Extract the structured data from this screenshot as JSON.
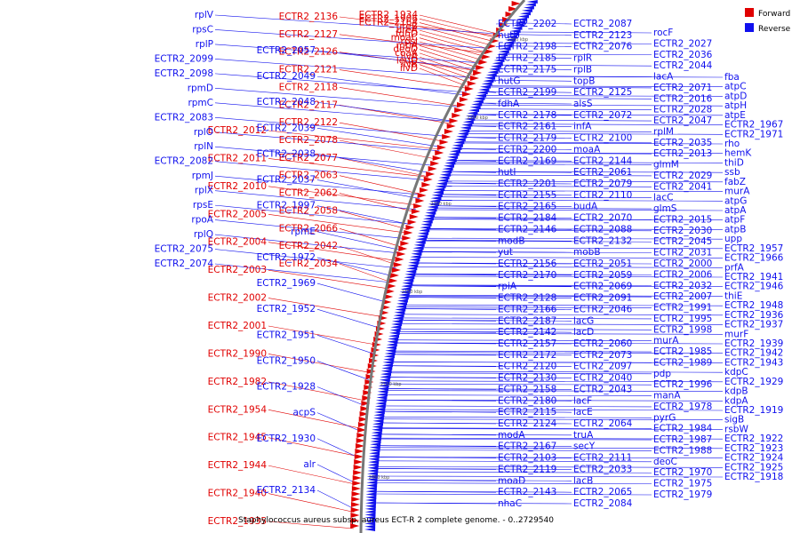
{
  "caption": "Staphylococcus aureus subsp. aureus ECT-R 2 complete genome. - 0..2729540",
  "legend": {
    "forward": {
      "label": "Forward",
      "color": "#e00000"
    },
    "reverse": {
      "label": "Reverse",
      "color": "#1010ee"
    }
  },
  "ticks": [
    "2300 kbp",
    "2250 kbp",
    "2200 kbp",
    "2150 kbp",
    "2100 kbp",
    "2050 kbp"
  ],
  "labels_forward": [
    "ECTR2_2136",
    "ECTR2_2127",
    "ECTR2_2126",
    "ECTR2_2121",
    "ECTR2_2118",
    "ECTR2_2117",
    "ECTR2_2122",
    "ECTR2_2078",
    "ECTR2_2077",
    "ECTR2_2063",
    "ECTR2_2062",
    "ECTR2_2058",
    "ECTR2_2066",
    "ECTR2_2042",
    "ECTR2_2034",
    "ECTR2_2012",
    "ECTR2_2011",
    "ECTR2_2010",
    "ECTR2_2005",
    "ECTR2_2004",
    "ECTR2_2003",
    "ECTR2_2002",
    "ECTR2_2001",
    "ECTR2_1990",
    "ECTR2_1982",
    "ECTR2_1954",
    "ECTR2_1945",
    "ECTR2_1944",
    "ECTR2_1940",
    "ECTR2_1935",
    "ECTR2_1934",
    "ECTR2_1906",
    "ECTR2_2164",
    "ureB",
    "ureA",
    "fdhD",
    "moaC",
    "rpsJ",
    "mtlA",
    "deoD",
    "coaA",
    "ilvA",
    "leuD",
    "ilvB",
    "ilvD"
  ],
  "labels_reverse_left": [
    "rplV",
    "rpsC",
    "rplP",
    "ECTR2_2099",
    "ECTR2_2098",
    "rpmD",
    "rpmC",
    "ECTR2_2083",
    "rplO",
    "rplN",
    "ECTR2_2082",
    "rpmJ",
    "rplX",
    "rpsE",
    "rpoA",
    "rplQ",
    "ECTR2_2075",
    "ECTR2_2074",
    "ECTR2_2057",
    "ECTR2_2049",
    "ECTR2_2048",
    "ECTR2_2039",
    "ECTR2_2038",
    "ECTR2_2037",
    "ECTR2_1997",
    "rpmE",
    "ECTR2_1972",
    "ECTR2_1969",
    "ECTR2_1952",
    "ECTR2_1951",
    "ECTR2_1950",
    "ECTR2_1928",
    "acpS",
    "ECTR2_1930",
    "alr",
    "ECTR2_2134"
  ],
  "labels_reverse_right": [
    "ECTR2_2202",
    "hutU",
    "ECTR2_2198",
    "ECTR2_2185",
    "ECTR2_2175",
    "hutG",
    "ECTR2_2199",
    "fdhA",
    "ECTR2_2178",
    "ECTR2_2161",
    "ECTR2_2179",
    "ECTR2_2200",
    "ECTR2_2169",
    "hutI",
    "ECTR2_2201",
    "ECTR2_2155",
    "ECTR2_2165",
    "ECTR2_2184",
    "ECTR2_2146",
    "modB",
    "yut",
    "ECTR2_2156",
    "ECTR2_2170",
    "rpiA",
    "ECTR2_2128",
    "ECTR2_2166",
    "ECTR2_2187",
    "ECTR2_2142",
    "ECTR2_2157",
    "ECTR2_2172",
    "ECTR2_2120",
    "ECTR2_2130",
    "ECTR2_2158",
    "ECTR2_2180",
    "ECTR2_2115",
    "ECTR2_2124",
    "modA",
    "ECTR2_2167",
    "ECTR2_2103",
    "ECTR2_2119",
    "moaD",
    "ECTR2_2143",
    "nhaC",
    "ECTR2_2087",
    "ECTR2_2123",
    "ECTR2_2076",
    "rplR",
    "rplB",
    "topB",
    "ECTR2_2125",
    "alsS",
    "ECTR2_2072",
    "infA",
    "ECTR2_2100",
    "moaA",
    "ECTR2_2144",
    "ECTR2_2061",
    "ECTR2_2079",
    "ECTR2_2110",
    "budA",
    "ECTR2_2070",
    "ECTR2_2088",
    "ECTR2_2132",
    "mobB",
    "ECTR2_2051",
    "ECTR2_2059",
    "ECTR2_2069",
    "ECTR2_2091",
    "ECTR2_2046",
    "lacG",
    "lacD",
    "ECTR2_2060",
    "ECTR2_2073",
    "ECTR2_2097",
    "ECTR2_2040",
    "ECTR2_2043",
    "lacF",
    "lacE",
    "ECTR2_2064",
    "truA",
    "secY",
    "ECTR2_2111",
    "ECTR2_2033",
    "lacB",
    "ECTR2_2065",
    "ECTR2_2084",
    "rocF",
    "ECTR2_2027",
    "ECTR2_2036",
    "ECTR2_2044",
    "lacA",
    "ECTR2_2071",
    "ECTR2_2016",
    "ECTR2_2028",
    "ECTR2_2047",
    "rplM",
    "ECTR2_2035",
    "ECTR2_2013",
    "glmM",
    "ECTR2_2029",
    "ECTR2_2041",
    "lacC",
    "glmS",
    "ECTR2_2015",
    "ECTR2_2030",
    "ECTR2_2045",
    "ECTR2_2031",
    "ECTR2_2000",
    "ECTR2_2006",
    "ECTR2_2032",
    "ECTR2_2007",
    "ECTR2_1991",
    "ECTR2_1995",
    "ECTR2_1998",
    "murA",
    "ECTR2_1985",
    "ECTR2_1989",
    "pdp",
    "ECTR2_1996",
    "manA",
    "ECTR2_1978",
    "pyrG",
    "ECTR2_1984",
    "ECTR2_1987",
    "ECTR2_1988",
    "deoC",
    "ECTR2_1970",
    "ECTR2_1975",
    "ECTR2_1979",
    "fba",
    "atpC",
    "atpD",
    "atpH",
    "atpE",
    "ECTR2_1967",
    "ECTR2_1971",
    "rho",
    "hemK",
    "thiD",
    "ssb",
    "fabZ",
    "murA",
    "atpG",
    "atpA",
    "atpF",
    "atpB",
    "upp",
    "ECTR2_1957",
    "ECTR2_1966",
    "prfA",
    "ECTR2_1941",
    "ECTR2_1946",
    "thiE",
    "ECTR2_1948",
    "ECTR2_1936",
    "ECTR2_1937",
    "murF",
    "ECTR2_1939",
    "ECTR2_1942",
    "ECTR2_1943",
    "kdpC",
    "ECTR2_1929",
    "kdpB",
    "kdpA",
    "ECTR2_1919",
    "sigB",
    "rsbW",
    "ECTR2_1922",
    "ECTR2_1923",
    "ECTR2_1924",
    "ECTR2_1925",
    "ECTR2_1918"
  ]
}
